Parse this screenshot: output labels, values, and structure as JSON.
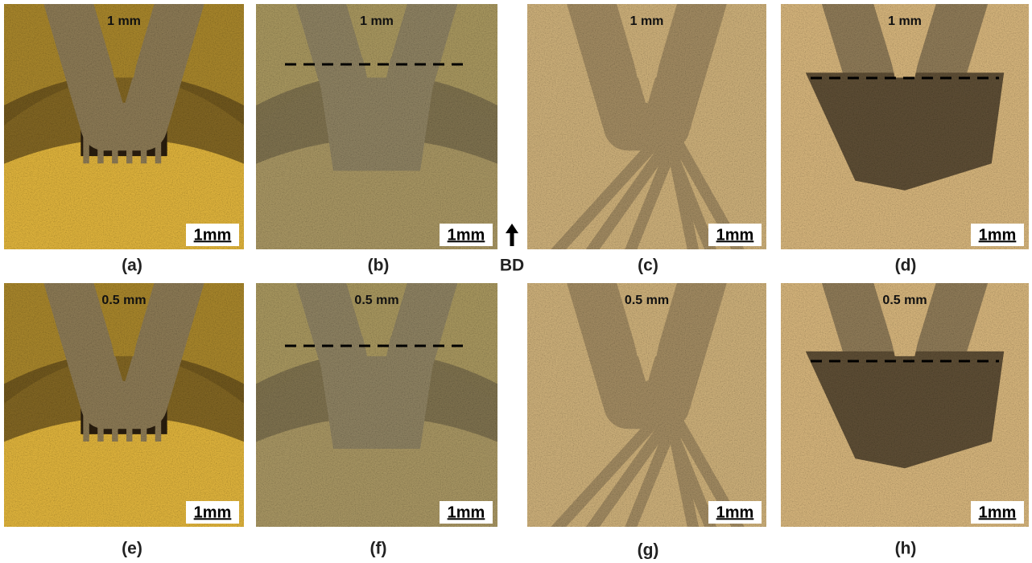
{
  "panels": [
    {
      "caption": "(a)",
      "spacing": "1 mm",
      "scale": "1mm"
    },
    {
      "caption": "(b)",
      "spacing": "1 mm",
      "scale": "1mm"
    },
    {
      "caption": "(c)",
      "spacing": "1 mm",
      "scale": "1mm"
    },
    {
      "caption": "(d)",
      "spacing": "1 mm",
      "scale": "1mm"
    },
    {
      "caption": "(e)",
      "spacing": "0.5 mm",
      "scale": "1mm"
    },
    {
      "caption": "(f)",
      "spacing": "0.5 mm",
      "scale": "1mm"
    },
    {
      "caption": "(g)",
      "spacing": "0.5 mm",
      "scale": "1mm"
    },
    {
      "caption": "(h)",
      "spacing": "0.5 mm",
      "scale": "1mm"
    }
  ],
  "build_direction": "BD"
}
